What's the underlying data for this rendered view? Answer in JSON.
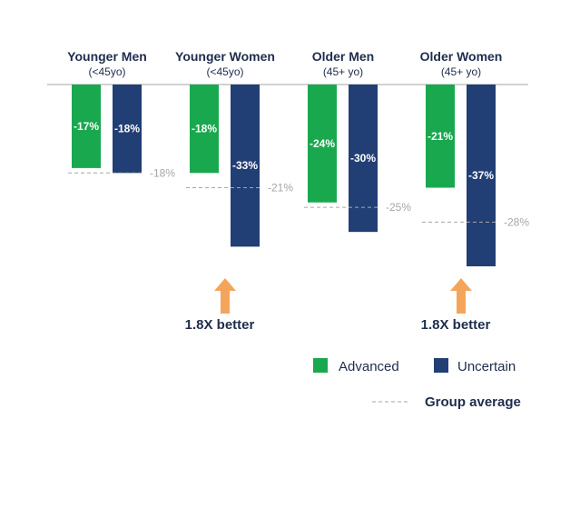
{
  "chart_data": {
    "type": "bar",
    "categories": [
      {
        "name": "Younger Men",
        "sub": "(<45yo)"
      },
      {
        "name": "Younger Women",
        "sub": "(<45yo)"
      },
      {
        "name": "Older Men",
        "sub": "(45+ yo)"
      },
      {
        "name": "Older Women",
        "sub": "(45+ yo)"
      }
    ],
    "series": [
      {
        "name": "Advanced",
        "color": "#1aa84f",
        "values": [
          -17,
          -18,
          -24,
          -21
        ],
        "labels": [
          "-17%",
          "-18%",
          "-24%",
          "-21%"
        ]
      },
      {
        "name": "Uncertain",
        "color": "#213f74",
        "values": [
          -18,
          -33,
          -30,
          -37
        ],
        "labels": [
          "-18%",
          "-33%",
          "-30%",
          "-37%"
        ]
      }
    ],
    "group_average": {
      "name": "Group average",
      "values": [
        -18,
        -21,
        -25,
        -28
      ],
      "labels": [
        "-18%",
        "-21%",
        "-25%",
        "-28%"
      ],
      "color": "#a6a6a6"
    },
    "callouts": [
      {
        "category_index": 1,
        "text": "1.8X better",
        "arrow_color": "#f5a55b"
      },
      {
        "category_index": 3,
        "text": "1.8X better",
        "arrow_color": "#f5a55b"
      }
    ],
    "ylim": [
      -37,
      0
    ],
    "legend_placement": "bottom-right"
  }
}
